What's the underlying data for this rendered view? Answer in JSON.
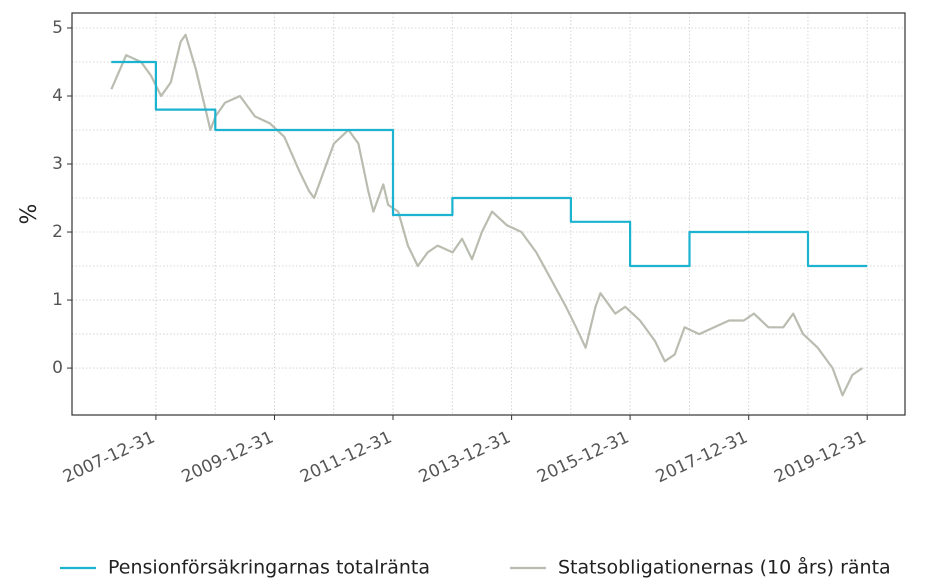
{
  "chart_data": {
    "type": "line",
    "ylabel": "%",
    "xlim": [
      "2006-08-01",
      "2020-08-20"
    ],
    "ylim": [
      -0.69,
      5.22
    ],
    "xticks": [
      "2007-12-31",
      "2009-12-31",
      "2011-12-31",
      "2013-12-31",
      "2015-12-31",
      "2017-12-31",
      "2019-12-31"
    ],
    "yticks": [
      0,
      1,
      2,
      3,
      4,
      5
    ],
    "grid": true,
    "legend": "bottom",
    "series": [
      {
        "name": "Pensionförsäkringarnas totalränta",
        "color": "#1bb3cf",
        "x": [
          "2007-03-31",
          "2007-12-31",
          "2007-12-31",
          "2008-12-31",
          "2008-12-31",
          "2011-12-31",
          "2011-12-31",
          "2012-12-31",
          "2012-12-31",
          "2014-12-31",
          "2014-12-31",
          "2015-12-31",
          "2015-12-31",
          "2016-12-31",
          "2016-12-31",
          "2018-12-31",
          "2018-12-31",
          "2019-12-31"
        ],
        "values": [
          4.5,
          4.5,
          3.8,
          3.8,
          3.5,
          3.5,
          2.25,
          2.25,
          2.5,
          2.5,
          2.15,
          2.15,
          1.5,
          1.5,
          2.0,
          2.0,
          1.5,
          1.5
        ]
      },
      {
        "name": "Statsobligationernas (10 års) ränta",
        "color": "#b9bdb0",
        "x": [
          "2007-04-01",
          "2007-07-01",
          "2007-10-01",
          "2007-12-01",
          "2008-02-01",
          "2008-04-01",
          "2008-06-01",
          "2008-07-01",
          "2008-09-01",
          "2008-11-01",
          "2008-12-01",
          "2009-01-01",
          "2009-03-01",
          "2009-06-01",
          "2009-09-01",
          "2009-12-01",
          "2010-03-01",
          "2010-06-01",
          "2010-08-01",
          "2010-09-01",
          "2010-11-01",
          "2011-01-01",
          "2011-04-01",
          "2011-06-01",
          "2011-08-01",
          "2011-09-01",
          "2011-11-01",
          "2011-12-01",
          "2012-02-01",
          "2012-04-01",
          "2012-06-01",
          "2012-08-01",
          "2012-10-01",
          "2013-01-01",
          "2013-03-01",
          "2013-05-01",
          "2013-07-01",
          "2013-09-01",
          "2013-12-01",
          "2014-03-01",
          "2014-06-01",
          "2014-09-01",
          "2014-12-01",
          "2015-02-01",
          "2015-04-01",
          "2015-06-01",
          "2015-07-01",
          "2015-10-01",
          "2015-12-01",
          "2016-03-01",
          "2016-06-01",
          "2016-08-01",
          "2016-10-01",
          "2016-12-01",
          "2017-03-01",
          "2017-06-01",
          "2017-09-01",
          "2017-12-01",
          "2018-02-01",
          "2018-05-01",
          "2018-08-01",
          "2018-10-01",
          "2018-12-01",
          "2019-03-01",
          "2019-06-01",
          "2019-08-01",
          "2019-10-01",
          "2019-12-01"
        ],
        "values": [
          4.1,
          4.6,
          4.5,
          4.3,
          4.0,
          4.2,
          4.8,
          4.9,
          4.4,
          3.8,
          3.5,
          3.7,
          3.9,
          4.0,
          3.7,
          3.6,
          3.4,
          2.9,
          2.6,
          2.5,
          2.9,
          3.3,
          3.5,
          3.3,
          2.6,
          2.3,
          2.7,
          2.4,
          2.3,
          1.8,
          1.5,
          1.7,
          1.8,
          1.7,
          1.9,
          1.6,
          2.0,
          2.3,
          2.1,
          2.0,
          1.7,
          1.3,
          0.9,
          0.6,
          0.3,
          0.9,
          1.1,
          0.8,
          0.9,
          0.7,
          0.4,
          0.1,
          0.2,
          0.6,
          0.5,
          0.6,
          0.7,
          0.7,
          0.8,
          0.6,
          0.6,
          0.8,
          0.5,
          0.3,
          0.0,
          -0.4,
          -0.1,
          0.0
        ]
      }
    ]
  }
}
